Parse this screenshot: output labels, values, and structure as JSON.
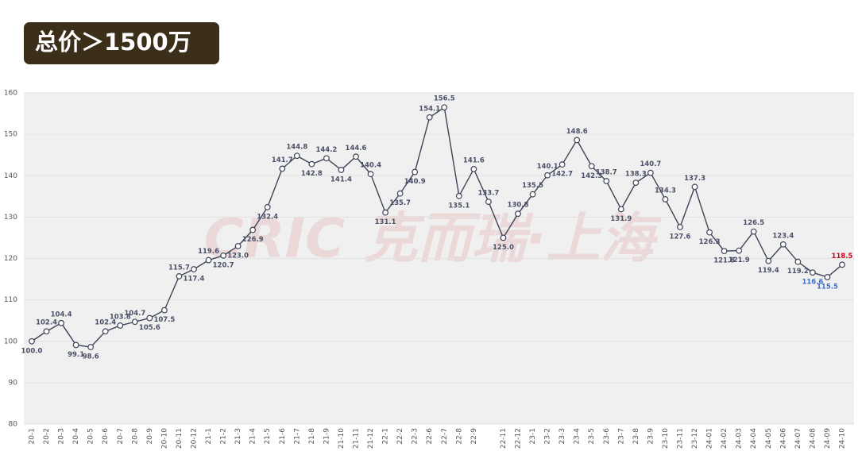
{
  "chart_data": {
    "type": "line",
    "title": "总价＞1500万",
    "watermark": "CRIC 克而瑞·上海",
    "categories": [
      "20-1",
      "20-2",
      "20-3",
      "20-4",
      "20-5",
      "20-6",
      "20-7",
      "20-8",
      "20-9",
      "20-10",
      "20-11",
      "20-12",
      "21-1",
      "21-2",
      "21-3",
      "21-4",
      "21-5",
      "21-6",
      "21-7",
      "21-8",
      "21-9",
      "21-10",
      "21-11",
      "21-12",
      "22-1",
      "22-2",
      "22-3",
      "22-6",
      "22-7",
      "22-8",
      "22-9",
      null,
      "22-11",
      "22-12",
      "23-1",
      "23-2",
      "23-3",
      "23-4",
      "23-5",
      "23-6",
      "23-7",
      "23-8",
      "23-9",
      "23-10",
      "23-11",
      "23-12",
      "24-01",
      "24-02",
      "24-03",
      "24-04",
      "24-05",
      "24-06",
      "24-07",
      "24-08",
      "24-09",
      "24-10"
    ],
    "series": [
      {
        "color": "#3d4457",
        "values": [
          100,
          102.4,
          104.4,
          99.1,
          98.6,
          102.4,
          103.8,
          104.7,
          105.6,
          107.5,
          115.7,
          117.4,
          119.6,
          120.7,
          123,
          126.9,
          132.4,
          141.7,
          144.8,
          142.8,
          144.2,
          141.4,
          144.6,
          140.4,
          131.1,
          135.7,
          140.9,
          154.1,
          156.5,
          135.1,
          141.6,
          133.7,
          125,
          130.8,
          135.5,
          140.1,
          142.7,
          148.6,
          142.3,
          138.7,
          131.9,
          138.3,
          140.7,
          134.3,
          127.6,
          137.3,
          126.3,
          121.8,
          121.9,
          126.5,
          119.4,
          123.4,
          119.2,
          116.6,
          115.5,
          118.5
        ],
        "value_labels": [
          "100.0",
          "102.4",
          "104.4",
          "99.1",
          "98.6",
          "102.4",
          "103.8",
          "104.7",
          "105.6",
          "107.5",
          "115.7",
          "117.4",
          "119.6",
          "120.7",
          "123.0",
          "126.9",
          "132.4",
          "141.7",
          "144.8",
          "142.8",
          "144.2",
          "141.4",
          "144.6",
          "140.4",
          "131.1",
          "135.7",
          "140.9",
          "154.1",
          "156.5",
          "135.1",
          "141.6",
          "133.7",
          "125.0",
          "130.8",
          "135.5",
          "140.1",
          "142.7",
          "148.6",
          "142.3",
          "138.7",
          "131.9",
          "138.3",
          "140.7",
          "134.3",
          "127.6",
          "137.3",
          "126.3",
          "121.8",
          "121.9",
          "126.5",
          "119.4",
          "123.4",
          "119.2",
          "116.6",
          "115.5",
          "118.5"
        ],
        "value_label_colors": [
          "#4a5068",
          "#4a5068",
          "#4a5068",
          "#4a5068",
          "#4a5068",
          "#4a5068",
          "#4a5068",
          "#4a5068",
          "#4a5068",
          "#4a5068",
          "#4a5068",
          "#4a5068",
          "#4a5068",
          "#4a5068",
          "#4a5068",
          "#4a5068",
          "#4a5068",
          "#4a5068",
          "#4a5068",
          "#4a5068",
          "#4a5068",
          "#4a5068",
          "#4a5068",
          "#4a5068",
          "#4a5068",
          "#4a5068",
          "#4a5068",
          "#4a5068",
          "#4a5068",
          "#4a5068",
          "#4a5068",
          "#4a5068",
          "#4a5068",
          "#4a5068",
          "#4a5068",
          "#4a5068",
          "#4a5068",
          "#4a5068",
          "#4a5068",
          "#4a5068",
          "#4a5068",
          "#4a5068",
          "#4a5068",
          "#4a5068",
          "#4a5068",
          "#4a5068",
          "#4a5068",
          "#4a5068",
          "#4a5068",
          "#4a5068",
          "#4a5068",
          "#4a5068",
          "#4a5068",
          "#3a6fc4",
          "#3a6fc4",
          "#d0021b"
        ]
      }
    ],
    "ylim": [
      80,
      160
    ],
    "yticks": [
      80,
      90,
      100,
      110,
      120,
      130,
      140,
      150,
      160
    ],
    "grid": true
  }
}
